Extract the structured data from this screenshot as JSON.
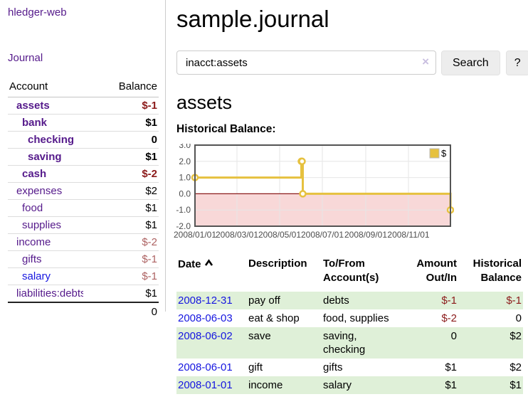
{
  "app": {
    "title": "hledger-web"
  },
  "colors": {
    "link_visited_purple": "#551a8b",
    "link_blue": "#1616e0",
    "negative_red": "#8b1a1a",
    "negative_dim_red": "#ad6262",
    "row_stripe_green": "#dff0d8",
    "chart_series_yellow": "#e6c13f",
    "chart_negative_fill": "#f8d8d8",
    "chart_zero_line": "#8b1a1a"
  },
  "sidebar": {
    "journal_link": "Journal",
    "accounts": {
      "headers": {
        "account": "Account",
        "balance": "Balance"
      },
      "rows": [
        {
          "name": "assets",
          "balance": "$-1"
        },
        {
          "name": "bank",
          "balance": "$1"
        },
        {
          "name": "checking",
          "balance": "0"
        },
        {
          "name": "saving",
          "balance": "$1"
        },
        {
          "name": "cash",
          "balance": "$-2"
        },
        {
          "name": "expenses",
          "balance": "$2"
        },
        {
          "name": "food",
          "balance": "$1"
        },
        {
          "name": "supplies",
          "balance": "$1"
        },
        {
          "name": "income",
          "balance": "$-2"
        },
        {
          "name": "gifts",
          "balance": "$-1"
        },
        {
          "name": "salary",
          "balance": "$-1"
        },
        {
          "name": "liabilities:debts",
          "balance": "$1"
        }
      ],
      "total": "0"
    }
  },
  "header": {
    "title": "sample.journal"
  },
  "search": {
    "value": "inacct:assets",
    "clear_icon": "×",
    "button_label": "Search",
    "help_label": "?"
  },
  "account_page": {
    "title": "assets",
    "chart_label": "Historical Balance:"
  },
  "chart_data": {
    "type": "line",
    "step": true,
    "title": "Historical Balance:",
    "series": [
      {
        "name": "$",
        "color": "#e6c13f",
        "points": [
          [
            "2008-01-01",
            1
          ],
          [
            "2008-06-01",
            2
          ],
          [
            "2008-06-02",
            2
          ],
          [
            "2008-06-03",
            0
          ],
          [
            "2008-12-31",
            -1
          ]
        ]
      }
    ],
    "x_range": [
      "2008-01-01",
      "2008-12-31"
    ],
    "x_ticks": [
      "2008/01/01",
      "2008/03/01",
      "2008/05/01",
      "2008/07/01",
      "2008/09/01",
      "2008/11/01"
    ],
    "y_ticks": [
      3.0,
      2.0,
      1.0,
      0.0,
      -1.0,
      -2.0
    ],
    "ylim": [
      -2,
      3
    ],
    "grid": true,
    "negative_fill": "#f8d8d8",
    "zero_line_color": "#8b1a1a",
    "legend": {
      "label": "$",
      "position": "top-right"
    }
  },
  "register": {
    "headers": {
      "date": "Date",
      "description": "Description",
      "accounts": "To/From Account(s)",
      "amount": "Amount Out/In",
      "balance": "Historical Balance"
    },
    "rows": [
      {
        "date": "2008-12-31",
        "description": "pay off",
        "accounts": "debts",
        "amount": "$-1",
        "balance": "$-1"
      },
      {
        "date": "2008-06-03",
        "description": "eat & shop",
        "accounts": "food, supplies",
        "amount": "$-2",
        "balance": "0"
      },
      {
        "date": "2008-06-02",
        "description": "save",
        "accounts": "saving, checking",
        "amount": "0",
        "balance": "$2"
      },
      {
        "date": "2008-06-01",
        "description": "gift",
        "accounts": "gifts",
        "amount": "$1",
        "balance": "$2"
      },
      {
        "date": "2008-01-01",
        "description": "income",
        "accounts": "salary",
        "amount": "$1",
        "balance": "$1"
      }
    ]
  }
}
